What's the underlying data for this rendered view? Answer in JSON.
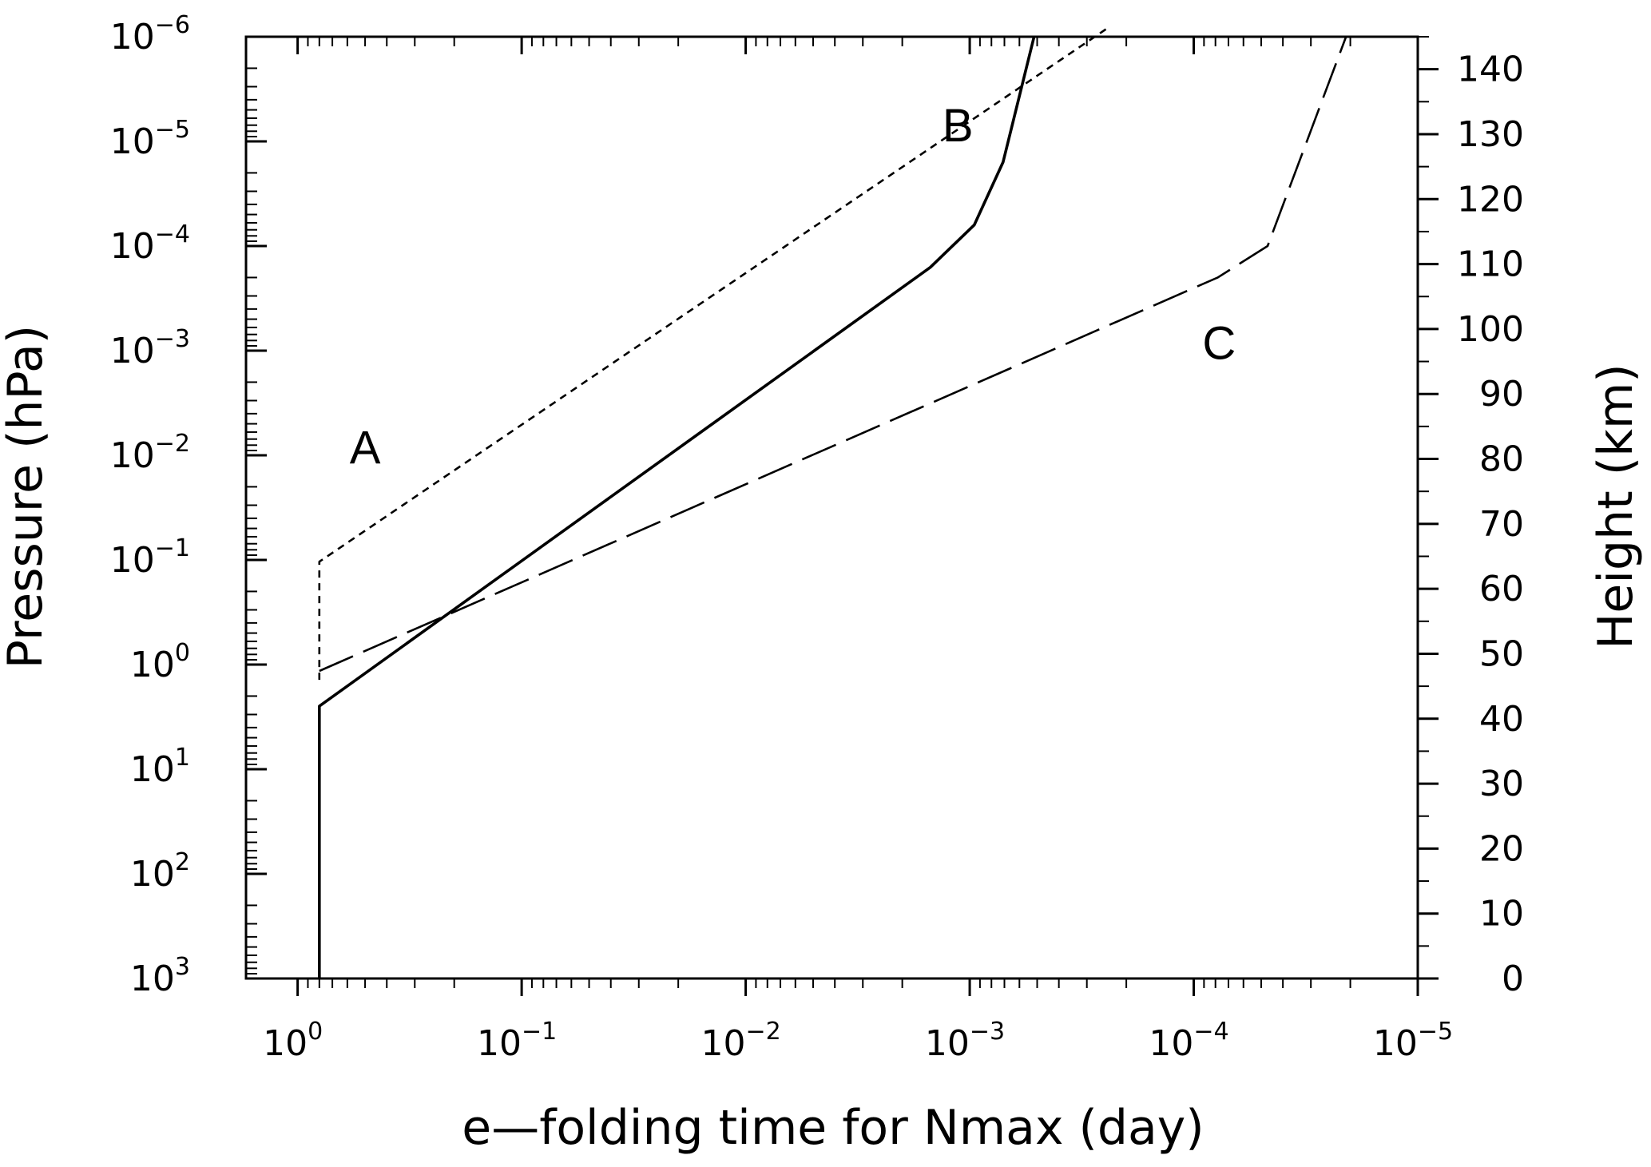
{
  "chart_data": {
    "type": "line",
    "title": "",
    "xlabel": "e—folding time for Nmax (day)",
    "ylabel": "Pressure (hPa)",
    "y2label": "Height (km)",
    "x_scale": "log",
    "x_reversed": true,
    "xlim": [
      1.7,
      1e-05
    ],
    "x_ticks": [
      {
        "value": 1,
        "base": "10",
        "exp": "0"
      },
      {
        "value": 0.1,
        "base": "10",
        "exp": "−1"
      },
      {
        "value": 0.01,
        "base": "10",
        "exp": "−2"
      },
      {
        "value": 0.001,
        "base": "10",
        "exp": "−3"
      },
      {
        "value": 0.0001,
        "base": "10",
        "exp": "−4"
      },
      {
        "value": 1e-05,
        "base": "10",
        "exp": "−5"
      }
    ],
    "y_scale": "log",
    "y_reversed": true,
    "ylim": [
      1000,
      1e-06
    ],
    "y_ticks": [
      {
        "value": 1e-06,
        "base": "10",
        "exp": "−6"
      },
      {
        "value": 1e-05,
        "base": "10",
        "exp": "−5"
      },
      {
        "value": 0.0001,
        "base": "10",
        "exp": "−4"
      },
      {
        "value": 0.001,
        "base": "10",
        "exp": "−3"
      },
      {
        "value": 0.01,
        "base": "10",
        "exp": "−2"
      },
      {
        "value": 0.1,
        "base": "10",
        "exp": "−1"
      },
      {
        "value": 1,
        "base": "10",
        "exp": "0"
      },
      {
        "value": 10,
        "base": "10",
        "exp": "1"
      },
      {
        "value": 100,
        "base": "10",
        "exp": "2"
      },
      {
        "value": 1000,
        "base": "10",
        "exp": "3"
      }
    ],
    "y2lim": [
      0,
      145
    ],
    "y2_ticks": [
      0,
      10,
      20,
      30,
      40,
      50,
      60,
      70,
      80,
      90,
      100,
      110,
      120,
      130,
      140
    ],
    "grid": false,
    "series": [
      {
        "label": "A",
        "style": "short-dash",
        "x": [
          0.8,
          0.8,
          0.8,
          0.000237
        ],
        "y": [
          1.4,
          1.0,
          0.104,
          8e-07
        ]
      },
      {
        "label": "B",
        "style": "solid",
        "x": [
          0.8,
          0.8,
          0.0015,
          0.000955,
          0.00071,
          0.000516
        ],
        "y": [
          1000,
          2.5,
          0.00016,
          6.3e-05,
          1.58e-05,
          1e-06
        ]
      },
      {
        "label": "C",
        "style": "long-dash",
        "x": [
          0.8,
          7.81e-05,
          4.68e-05,
          2.09e-05
        ],
        "y": [
          1.15,
          0.0002,
          0.0001,
          1e-06
        ]
      }
    ],
    "annotations": [
      {
        "text": "A",
        "x": 0.5,
        "y": 0.012
      },
      {
        "text": "B",
        "x": 0.00113,
        "y": 1e-05
      },
      {
        "text": "C",
        "x": 7.7e-05,
        "y": 0.0012
      }
    ]
  }
}
